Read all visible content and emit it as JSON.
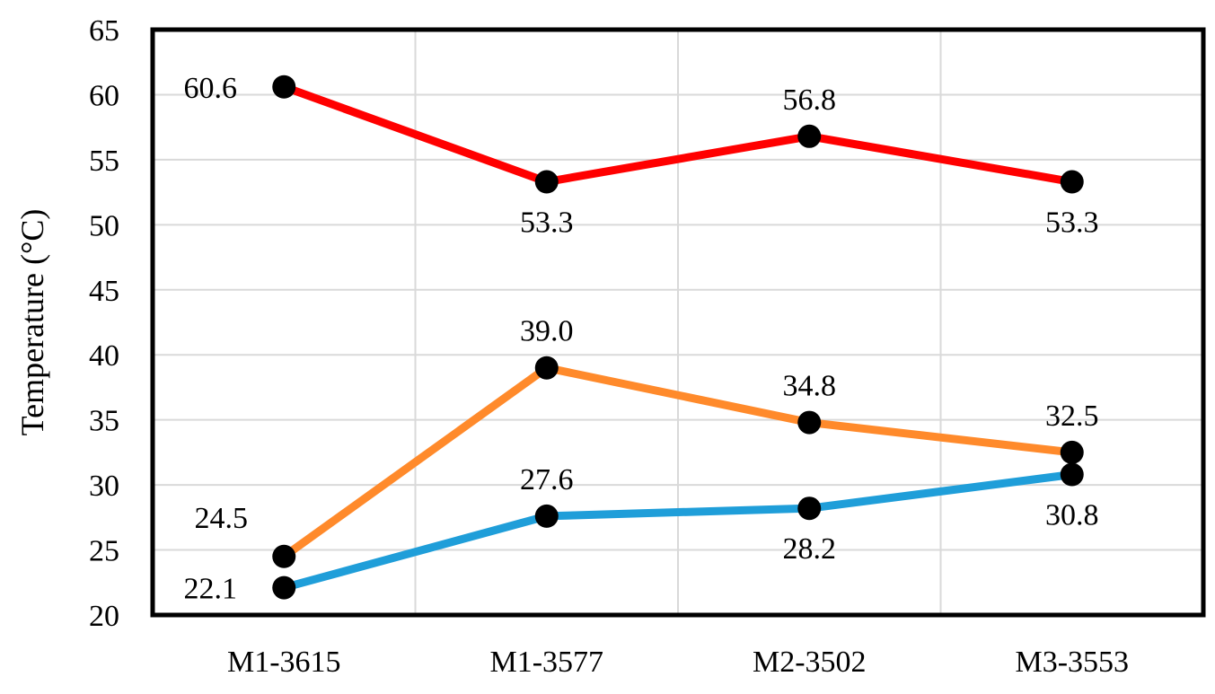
{
  "chart_data": {
    "type": "line",
    "title": "",
    "xlabel": "",
    "ylabel": "Temperature (°C)",
    "categories": [
      "M1-3615",
      "M1-3577",
      "M2-3502",
      "M3-3553"
    ],
    "ylim": [
      20,
      65
    ],
    "y_ticks": [
      "20",
      "25",
      "30",
      "35",
      "40",
      "45",
      "50",
      "55",
      "60",
      "65"
    ],
    "grid": true,
    "legend": "none",
    "series": [
      {
        "color": "#ff0000",
        "values": [
          60.6,
          53.3,
          56.8,
          53.3
        ],
        "labels": [
          "60.6",
          "53.3",
          "56.8",
          "53.3"
        ],
        "label_positions": [
          "left",
          "below",
          "above",
          "below"
        ]
      },
      {
        "color": "#ff8a2b",
        "values": [
          24.5,
          39.0,
          34.8,
          32.5
        ],
        "labels": [
          "24.5",
          "39.0",
          "34.8",
          "32.5"
        ],
        "label_positions": [
          "above-left",
          "above",
          "above",
          "above"
        ]
      },
      {
        "color": "#1f9ed9",
        "values": [
          22.1,
          27.6,
          28.2,
          30.8
        ],
        "labels": [
          "22.1",
          "27.6",
          "28.2",
          "30.8"
        ],
        "label_positions": [
          "left",
          "above",
          "below",
          "below"
        ]
      }
    ]
  }
}
